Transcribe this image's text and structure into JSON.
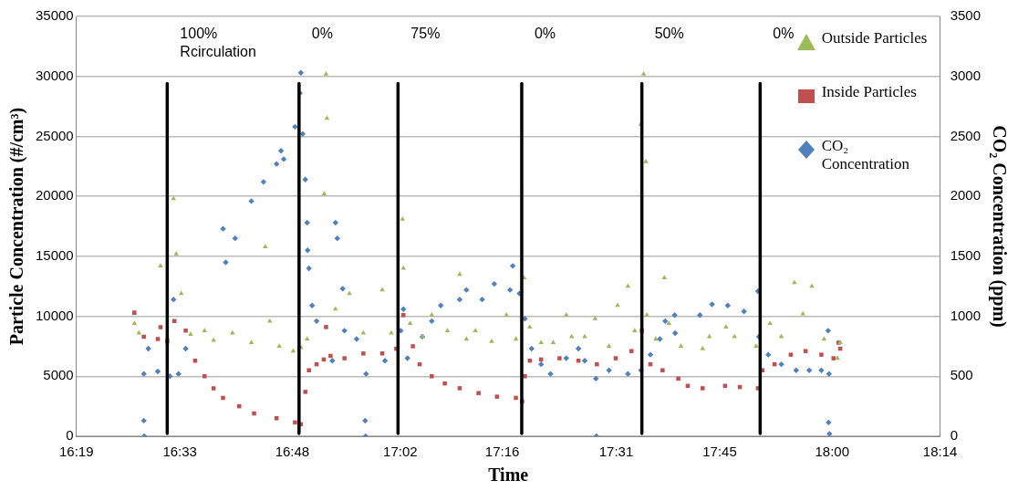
{
  "chart_data": {
    "type": "scatter",
    "xlabel": "Time",
    "ylabel": "Particle Concentration (#/cm³)",
    "y2label": "CO₂ Concentration (ppm)",
    "xlim": [
      16.32,
      18.24
    ],
    "xticks": [
      {
        "value": 16.32,
        "label": "16:19"
      },
      {
        "value": 16.55,
        "label": "16:33"
      },
      {
        "value": 16.8,
        "label": "16:48"
      },
      {
        "value": 17.04,
        "label": "17:02"
      },
      {
        "value": 17.2667,
        "label": "17:16"
      },
      {
        "value": 17.52,
        "label": "17:31"
      },
      {
        "value": 17.75,
        "label": "17:45"
      },
      {
        "value": 18.0,
        "label": "18:00"
      },
      {
        "value": 18.24,
        "label": "18:14"
      }
    ],
    "ylim": [
      0,
      35000
    ],
    "yticks": [
      0,
      5000,
      10000,
      15000,
      20000,
      25000,
      30000,
      35000
    ],
    "y2lim": [
      0,
      3500
    ],
    "y2ticks": [
      0,
      500,
      1000,
      1500,
      2000,
      2500,
      3000,
      3500
    ],
    "grid": "y",
    "legend": "top right",
    "series": [
      {
        "name": "Outside Particles",
        "color": "#9bbb59",
        "marker": "triangle",
        "x": [
          16.449,
          16.459,
          16.507,
          16.522,
          16.536,
          16.542,
          16.553,
          16.574,
          16.605,
          16.625,
          16.667,
          16.709,
          16.74,
          16.75,
          16.771,
          16.802,
          16.819,
          16.833,
          16.871,
          16.875,
          16.877,
          16.896,
          16.927,
          16.958,
          17.0,
          17.02,
          17.045,
          17.047,
          17.062,
          17.089,
          17.11,
          17.145,
          17.172,
          17.187,
          17.207,
          17.243,
          17.276,
          17.297,
          17.315,
          17.328,
          17.353,
          17.38,
          17.409,
          17.421,
          17.45,
          17.473,
          17.504,
          17.523,
          17.546,
          17.561,
          17.575,
          17.581,
          17.586,
          17.588,
          17.608,
          17.627,
          17.637,
          17.664,
          17.712,
          17.727,
          17.764,
          17.783,
          17.831,
          17.862,
          17.887,
          17.916,
          17.935,
          17.955,
          17.982,
          18.012,
          18.018
        ],
        "values": [
          9400,
          8600,
          14200,
          8200,
          19800,
          15200,
          11900,
          8500,
          8800,
          8000,
          8600,
          7800,
          15800,
          9600,
          7500,
          7100,
          7400,
          8100,
          20200,
          30200,
          26500,
          10600,
          11900,
          8600,
          12200,
          8600,
          18100,
          14000,
          9400,
          8300,
          10100,
          8800,
          13500,
          8100,
          8800,
          7900,
          10100,
          8100,
          13200,
          9100,
          7800,
          7800,
          10100,
          8300,
          8300,
          9800,
          7500,
          10900,
          12500,
          8800,
          26000,
          30200,
          22900,
          10100,
          8100,
          13200,
          9400,
          7500,
          7300,
          8300,
          9100,
          8300,
          7500,
          9400,
          8300,
          12800,
          10200,
          12500,
          8100,
          6500,
          7800
        ]
      },
      {
        "name": "Inside Particles",
        "color": "#c0504d",
        "marker": "square",
        "x": [
          16.449,
          16.47,
          16.501,
          16.507,
          16.522,
          16.538,
          16.563,
          16.584,
          16.605,
          16.625,
          16.646,
          16.682,
          16.715,
          16.765,
          16.806,
          16.819,
          16.829,
          16.837,
          16.854,
          16.87,
          16.875,
          16.885,
          16.916,
          16.958,
          17.0,
          17.031,
          17.047,
          17.068,
          17.083,
          17.11,
          17.139,
          17.172,
          17.214,
          17.255,
          17.297,
          17.311,
          17.317,
          17.328,
          17.353,
          17.394,
          17.436,
          17.477,
          17.519,
          17.554,
          17.577,
          17.596,
          17.623,
          17.658,
          17.679,
          17.712,
          17.762,
          17.795,
          17.835,
          17.845,
          17.872,
          17.908,
          17.941,
          17.976,
          18.003,
          18.014,
          18.018
        ],
        "values": [
          10300,
          8300,
          8100,
          9100,
          7900,
          9600,
          8800,
          6300,
          5000,
          4000,
          3200,
          2500,
          1900,
          1500,
          1150,
          1000,
          3700,
          5500,
          6000,
          6400,
          9100,
          6700,
          6500,
          6900,
          6900,
          7300,
          10100,
          7500,
          6000,
          5000,
          4400,
          4000,
          3600,
          3300,
          3200,
          2900,
          5000,
          6300,
          6400,
          6500,
          6300,
          6000,
          6500,
          7100,
          8800,
          6000,
          5500,
          4800,
          4200,
          4000,
          4200,
          4100,
          4000,
          5500,
          6000,
          6800,
          7100,
          6800,
          6500,
          7800,
          7300
        ]
      },
      {
        "name": "CO₂ Concentration",
        "color": "#4f81bd",
        "marker": "diamond",
        "axis": "y2",
        "x": [
          16.47,
          16.47,
          16.471,
          16.48,
          16.501,
          16.528,
          16.536,
          16.547,
          16.563,
          16.646,
          16.652,
          16.673,
          16.709,
          16.736,
          16.765,
          16.775,
          16.781,
          16.806,
          16.817,
          16.819,
          16.823,
          16.829,
          16.833,
          16.834,
          16.837,
          16.844,
          16.854,
          16.889,
          16.896,
          16.9,
          16.912,
          16.916,
          16.943,
          16.962,
          16.963,
          16.964,
          17.006,
          17.041,
          17.047,
          17.056,
          17.089,
          17.11,
          17.13,
          17.172,
          17.187,
          17.222,
          17.249,
          17.284,
          17.29,
          17.305,
          17.317,
          17.332,
          17.353,
          17.374,
          17.409,
          17.436,
          17.45,
          17.475,
          17.476,
          17.504,
          17.546,
          17.575,
          17.596,
          17.617,
          17.629,
          17.65,
          17.651,
          17.706,
          17.733,
          17.768,
          17.804,
          17.835,
          17.837,
          17.858,
          17.887,
          17.92,
          17.949,
          17.976,
          17.991,
          17.993,
          17.992,
          17.994
        ],
        "values": [
          520,
          130,
          0,
          730,
          540,
          500,
          1140,
          520,
          730,
          1730,
          1450,
          1650,
          1960,
          2120,
          2270,
          2380,
          2310,
          2580,
          2860,
          3030,
          2520,
          2140,
          1780,
          1550,
          1400,
          1090,
          960,
          630,
          1780,
          1650,
          1230,
          880,
          810,
          130,
          0,
          520,
          630,
          880,
          1060,
          650,
          830,
          960,
          1090,
          1140,
          1220,
          1140,
          1270,
          1220,
          1420,
          1190,
          980,
          730,
          600,
          520,
          650,
          730,
          630,
          480,
          0,
          550,
          520,
          550,
          680,
          810,
          960,
          1010,
          860,
          1010,
          1100,
          1090,
          1040,
          1210,
          830,
          680,
          600,
          550,
          550,
          550,
          880,
          520,
          115,
          20
        ]
      }
    ],
    "annotations": [
      "100%\nRcirculation",
      "0%",
      "75%",
      "0%",
      "50%",
      "0%"
    ],
    "ref_lines": [
      {
        "axis": "x",
        "value": 16.522,
        "color": "#000000"
      },
      {
        "axis": "x",
        "value": 16.815,
        "color": "#000000"
      },
      {
        "axis": "x",
        "value": 17.035,
        "color": "#000000"
      },
      {
        "axis": "x",
        "value": 17.31,
        "color": "#000000"
      },
      {
        "axis": "x",
        "value": 17.577,
        "color": "#000000"
      },
      {
        "axis": "x",
        "value": 17.84,
        "color": "#000000"
      }
    ]
  }
}
